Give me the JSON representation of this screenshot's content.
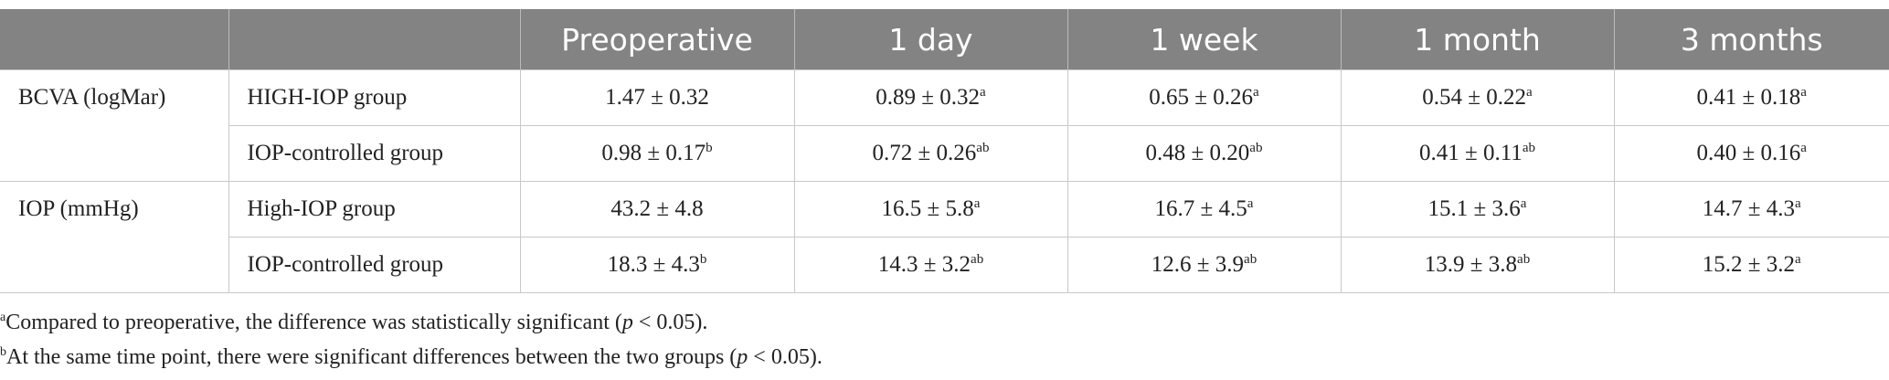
{
  "table": {
    "header": [
      "Preoperative",
      "1 day",
      "1 week",
      "1 month",
      "3 months"
    ],
    "groups": [
      {
        "label": "BCVA (logMar)",
        "rows": [
          {
            "label": "HIGH-IOP group",
            "cells": [
              {
                "text": "1.47 ± 0.32"
              },
              {
                "text": "0.89 ± 0.32",
                "sup": "a"
              },
              {
                "text": "0.65 ± 0.26",
                "sup": "a"
              },
              {
                "text": "0.54 ± 0.22",
                "sup": "a"
              },
              {
                "text": "0.41 ± 0.18",
                "sup": "a"
              }
            ]
          },
          {
            "label": "IOP-controlled group",
            "cells": [
              {
                "text": "0.98 ± 0.17",
                "sup": "b"
              },
              {
                "text": "0.72 ± 0.26",
                "sup": "ab"
              },
              {
                "text": "0.48 ± 0.20",
                "sup": "ab"
              },
              {
                "text": "0.41 ± 0.11",
                "sup": "ab"
              },
              {
                "text": "0.40 ± 0.16",
                "sup": "a"
              }
            ]
          }
        ]
      },
      {
        "label": "IOP (mmHg)",
        "rows": [
          {
            "label": "High-IOP group",
            "cells": [
              {
                "text": "43.2 ± 4.8"
              },
              {
                "text": "16.5 ± 5.8",
                "sup": "a"
              },
              {
                "text": "16.7 ± 4.5",
                "sup": "a"
              },
              {
                "text": "15.1 ± 3.6",
                "sup": "a"
              },
              {
                "text": "14.7 ± 4.3",
                "sup": "a"
              }
            ]
          },
          {
            "label": "IOP-controlled group",
            "cells": [
              {
                "text": "18.3 ± 4.3",
                "sup": "b"
              },
              {
                "text": "14.3 ± 3.2",
                "sup": "ab"
              },
              {
                "text": "12.6 ± 3.9",
                "sup": "ab"
              },
              {
                "text": "13.9 ± 3.8",
                "sup": "ab"
              },
              {
                "text": "15.2 ± 3.2",
                "sup": "a"
              }
            ]
          }
        ]
      }
    ]
  },
  "footnotes": [
    {
      "mark": "a",
      "parts": [
        "Compared to preoperative, the difference was statistically significant (",
        "p",
        " < 0.05)."
      ]
    },
    {
      "mark": "b",
      "parts": [
        "At the same time point, there were significant differences between the two groups (",
        "p",
        " < 0.05)."
      ]
    }
  ]
}
